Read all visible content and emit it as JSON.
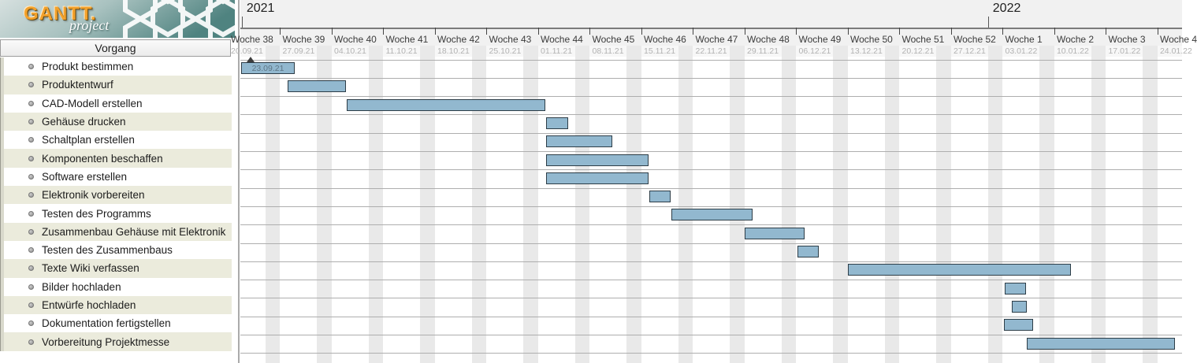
{
  "app": {
    "logo_title": "GANTT.",
    "logo_subtitle": "project",
    "logo_colors": {
      "title": "#f2a12c",
      "band_light": "#cfdcdb",
      "band_dark": "#4f8380"
    }
  },
  "panel": {
    "header": "Vorgang",
    "tasks": [
      "Produkt bestimmen",
      "Produktentwurf",
      "CAD-Modell erstellen",
      "Gehäuse drucken",
      "Schaltplan erstellen",
      "Komponenten beschaffen",
      "Software erstellen",
      "Elektronik vorbereiten",
      "Testen des Programms",
      "Zusammenbau Gehäuse mit Elektronik",
      "Testen des Zusammenbaus",
      "Texte Wiki verfassen",
      "Bilder hochladen",
      "Entwürfe hochladen",
      "Dokumentation fertigstellen",
      "Vorbereitung Projektmesse"
    ]
  },
  "chart_data": {
    "type": "gantt",
    "day_zero_date": "20.09.21",
    "years": [
      {
        "label": "2021",
        "tick_day": 1.8
      },
      {
        "label": "2022",
        "tick_day": 103.0
      }
    ],
    "weeks": [
      {
        "label": "Woche 38",
        "date": "20.09.21"
      },
      {
        "label": "Woche 39",
        "date": "27.09.21"
      },
      {
        "label": "Woche 40",
        "date": "04.10.21"
      },
      {
        "label": "Woche 41",
        "date": "11.10.21"
      },
      {
        "label": "Woche 42",
        "date": "18.10.21"
      },
      {
        "label": "Woche 43",
        "date": "25.10.21"
      },
      {
        "label": "Woche 44",
        "date": "01.11.21"
      },
      {
        "label": "Woche 45",
        "date": "08.11.21"
      },
      {
        "label": "Woche 46",
        "date": "15.11.21"
      },
      {
        "label": "Woche 47",
        "date": "22.11.21"
      },
      {
        "label": "Woche 48",
        "date": "29.11.21"
      },
      {
        "label": "Woche 49",
        "date": "06.12.21"
      },
      {
        "label": "Woche 50",
        "date": "13.12.21"
      },
      {
        "label": "Woche 51",
        "date": "20.12.21"
      },
      {
        "label": "Woche 52",
        "date": "27.12.21"
      },
      {
        "label": "Woche 1",
        "date": "03.01.22"
      },
      {
        "label": "Woche 2",
        "date": "10.01.22"
      },
      {
        "label": "Woche 3",
        "date": "17.01.22"
      },
      {
        "label": "Woche 4",
        "date": "24.01.22"
      }
    ],
    "project_start_marker": {
      "day": 3.0
    },
    "bars": [
      {
        "task": "Produkt bestimmen",
        "start_day": 1.7,
        "end_day": 9.1,
        "label": "23.09.21"
      },
      {
        "task": "Produktentwurf",
        "start_day": 8.0,
        "end_day": 16.0,
        "label": ""
      },
      {
        "task": "CAD-Modell erstellen",
        "start_day": 16.0,
        "end_day": 43.1,
        "label": ""
      },
      {
        "task": "Gehäuse drucken",
        "start_day": 43.1,
        "end_day": 46.2,
        "label": ""
      },
      {
        "task": "Schaltplan erstellen",
        "start_day": 43.1,
        "end_day": 52.2,
        "label": ""
      },
      {
        "task": "Komponenten beschaffen",
        "start_day": 43.1,
        "end_day": 57.1,
        "label": ""
      },
      {
        "task": "Software erstellen",
        "start_day": 43.1,
        "end_day": 57.1,
        "label": ""
      },
      {
        "task": "Elektronik vorbereiten",
        "start_day": 57.1,
        "end_day": 60.1,
        "label": ""
      },
      {
        "task": "Testen des Programms",
        "start_day": 60.1,
        "end_day": 71.2,
        "label": ""
      },
      {
        "task": "Zusammenbau Gehäuse mit Elektronik",
        "start_day": 70.0,
        "end_day": 78.2,
        "label": ""
      },
      {
        "task": "Testen des Zusammenbaus",
        "start_day": 77.2,
        "end_day": 80.2,
        "label": ""
      },
      {
        "task": "Texte Wiki verfassen",
        "start_day": 84.0,
        "end_day": 114.4,
        "label": ""
      },
      {
        "task": "Bilder hochladen",
        "start_day": 105.3,
        "end_day": 108.3,
        "label": ""
      },
      {
        "task": "Entwürfe hochladen",
        "start_day": 106.2,
        "end_day": 108.4,
        "label": ""
      },
      {
        "task": "Dokumentation fertigstellen",
        "start_day": 105.2,
        "end_day": 109.2,
        "label": ""
      },
      {
        "task": "Vorbereitung Projektmesse",
        "start_day": 108.3,
        "end_day": 128.5,
        "label": ""
      }
    ],
    "colors": {
      "bar_fill": "#92b8cf",
      "bar_border": "#2d3d47",
      "weekend_stripe": "#e9e9e9",
      "row_stripe": "#ebebdc",
      "grid_line": "#aeaeae"
    }
  }
}
